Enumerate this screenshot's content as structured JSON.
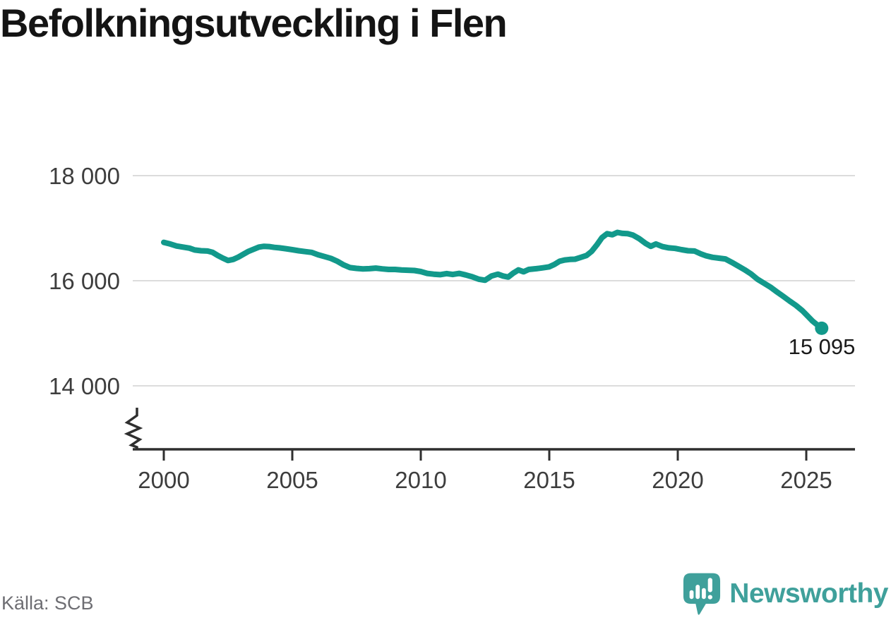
{
  "title": "Befolkningsutveckling i Flen",
  "source": "Källa: SCB",
  "branding": {
    "name": "Newsworthy",
    "icon": "newsworthy-speech-bubble-bar-chart-icon"
  },
  "colors": {
    "line": "#12998b",
    "end_dot": "#12998b",
    "grid": "#dcdcdc",
    "axis": "#2f2f2f",
    "tick_label": "#3d3d3d",
    "end_label": "#1a1a1a",
    "title_text": "#141414",
    "source_text": "#6e6e73",
    "brand": "#3fa09b"
  },
  "chart_data": {
    "type": "line",
    "title": "Befolkningsutveckling i Flen",
    "xlabel": "",
    "ylabel": "",
    "grid": "horizontal",
    "legend": "none",
    "y_axis_break": true,
    "x_ticks": [
      {
        "value": 2000,
        "label": "2000"
      },
      {
        "value": 2005,
        "label": "2005"
      },
      {
        "value": 2010,
        "label": "2010"
      },
      {
        "value": 2015,
        "label": "2015"
      },
      {
        "value": 2020,
        "label": "2020"
      },
      {
        "value": 2025,
        "label": "2025"
      }
    ],
    "y_ticks": [
      {
        "value": 14000,
        "label": "14 000"
      },
      {
        "value": 16000,
        "label": "16 000"
      },
      {
        "value": 18000,
        "label": "18 000"
      }
    ],
    "xlim": [
      1998.8,
      2026.9
    ],
    "ylim_visible": [
      13300,
      18900
    ],
    "end_value": 15095,
    "end_label": "15 095",
    "series": [
      {
        "name": "Folkmängd",
        "points": [
          [
            2000.0,
            16730
          ],
          [
            2000.25,
            16700
          ],
          [
            2000.5,
            16660
          ],
          [
            2000.75,
            16640
          ],
          [
            2001.0,
            16620
          ],
          [
            2001.2,
            16585
          ],
          [
            2001.45,
            16570
          ],
          [
            2001.7,
            16565
          ],
          [
            2001.9,
            16540
          ],
          [
            2002.1,
            16480
          ],
          [
            2002.3,
            16430
          ],
          [
            2002.5,
            16385
          ],
          [
            2002.7,
            16405
          ],
          [
            2002.9,
            16450
          ],
          [
            2003.1,
            16505
          ],
          [
            2003.3,
            16560
          ],
          [
            2003.5,
            16600
          ],
          [
            2003.7,
            16640
          ],
          [
            2003.9,
            16655
          ],
          [
            2004.1,
            16650
          ],
          [
            2004.3,
            16635
          ],
          [
            2004.5,
            16625
          ],
          [
            2004.75,
            16610
          ],
          [
            2005.0,
            16590
          ],
          [
            2005.25,
            16570
          ],
          [
            2005.5,
            16555
          ],
          [
            2005.75,
            16540
          ],
          [
            2006.0,
            16495
          ],
          [
            2006.25,
            16460
          ],
          [
            2006.5,
            16425
          ],
          [
            2006.75,
            16370
          ],
          [
            2007.0,
            16300
          ],
          [
            2007.25,
            16250
          ],
          [
            2007.5,
            16235
          ],
          [
            2007.75,
            16225
          ],
          [
            2008.0,
            16230
          ],
          [
            2008.25,
            16240
          ],
          [
            2008.5,
            16225
          ],
          [
            2008.75,
            16215
          ],
          [
            2009.0,
            16215
          ],
          [
            2009.25,
            16205
          ],
          [
            2009.5,
            16200
          ],
          [
            2009.75,
            16195
          ],
          [
            2010.0,
            16175
          ],
          [
            2010.25,
            16140
          ],
          [
            2010.5,
            16125
          ],
          [
            2010.75,
            16115
          ],
          [
            2011.0,
            16135
          ],
          [
            2011.25,
            16120
          ],
          [
            2011.5,
            16140
          ],
          [
            2011.75,
            16110
          ],
          [
            2012.0,
            16075
          ],
          [
            2012.25,
            16030
          ],
          [
            2012.5,
            16010
          ],
          [
            2012.75,
            16090
          ],
          [
            2013.0,
            16125
          ],
          [
            2013.2,
            16090
          ],
          [
            2013.4,
            16070
          ],
          [
            2013.6,
            16145
          ],
          [
            2013.8,
            16205
          ],
          [
            2014.0,
            16170
          ],
          [
            2014.2,
            16215
          ],
          [
            2014.5,
            16230
          ],
          [
            2014.75,
            16245
          ],
          [
            2015.0,
            16265
          ],
          [
            2015.2,
            16310
          ],
          [
            2015.4,
            16370
          ],
          [
            2015.6,
            16395
          ],
          [
            2015.8,
            16405
          ],
          [
            2016.0,
            16410
          ],
          [
            2016.2,
            16440
          ],
          [
            2016.45,
            16480
          ],
          [
            2016.65,
            16560
          ],
          [
            2016.85,
            16680
          ],
          [
            2017.05,
            16820
          ],
          [
            2017.25,
            16895
          ],
          [
            2017.45,
            16875
          ],
          [
            2017.65,
            16920
          ],
          [
            2017.85,
            16900
          ],
          [
            2018.05,
            16895
          ],
          [
            2018.25,
            16870
          ],
          [
            2018.5,
            16800
          ],
          [
            2018.75,
            16710
          ],
          [
            2018.95,
            16655
          ],
          [
            2019.15,
            16700
          ],
          [
            2019.4,
            16650
          ],
          [
            2019.65,
            16625
          ],
          [
            2019.9,
            16615
          ],
          [
            2020.15,
            16590
          ],
          [
            2020.4,
            16570
          ],
          [
            2020.65,
            16565
          ],
          [
            2020.9,
            16510
          ],
          [
            2021.1,
            16475
          ],
          [
            2021.35,
            16445
          ],
          [
            2021.6,
            16430
          ],
          [
            2021.85,
            16415
          ],
          [
            2022.1,
            16350
          ],
          [
            2022.35,
            16280
          ],
          [
            2022.6,
            16210
          ],
          [
            2022.85,
            16130
          ],
          [
            2023.1,
            16030
          ],
          [
            2023.35,
            15955
          ],
          [
            2023.6,
            15880
          ],
          [
            2023.85,
            15790
          ],
          [
            2024.1,
            15705
          ],
          [
            2024.35,
            15615
          ],
          [
            2024.6,
            15530
          ],
          [
            2024.85,
            15430
          ],
          [
            2025.05,
            15330
          ],
          [
            2025.25,
            15230
          ],
          [
            2025.45,
            15150
          ],
          [
            2025.6,
            15095
          ]
        ]
      }
    ]
  }
}
